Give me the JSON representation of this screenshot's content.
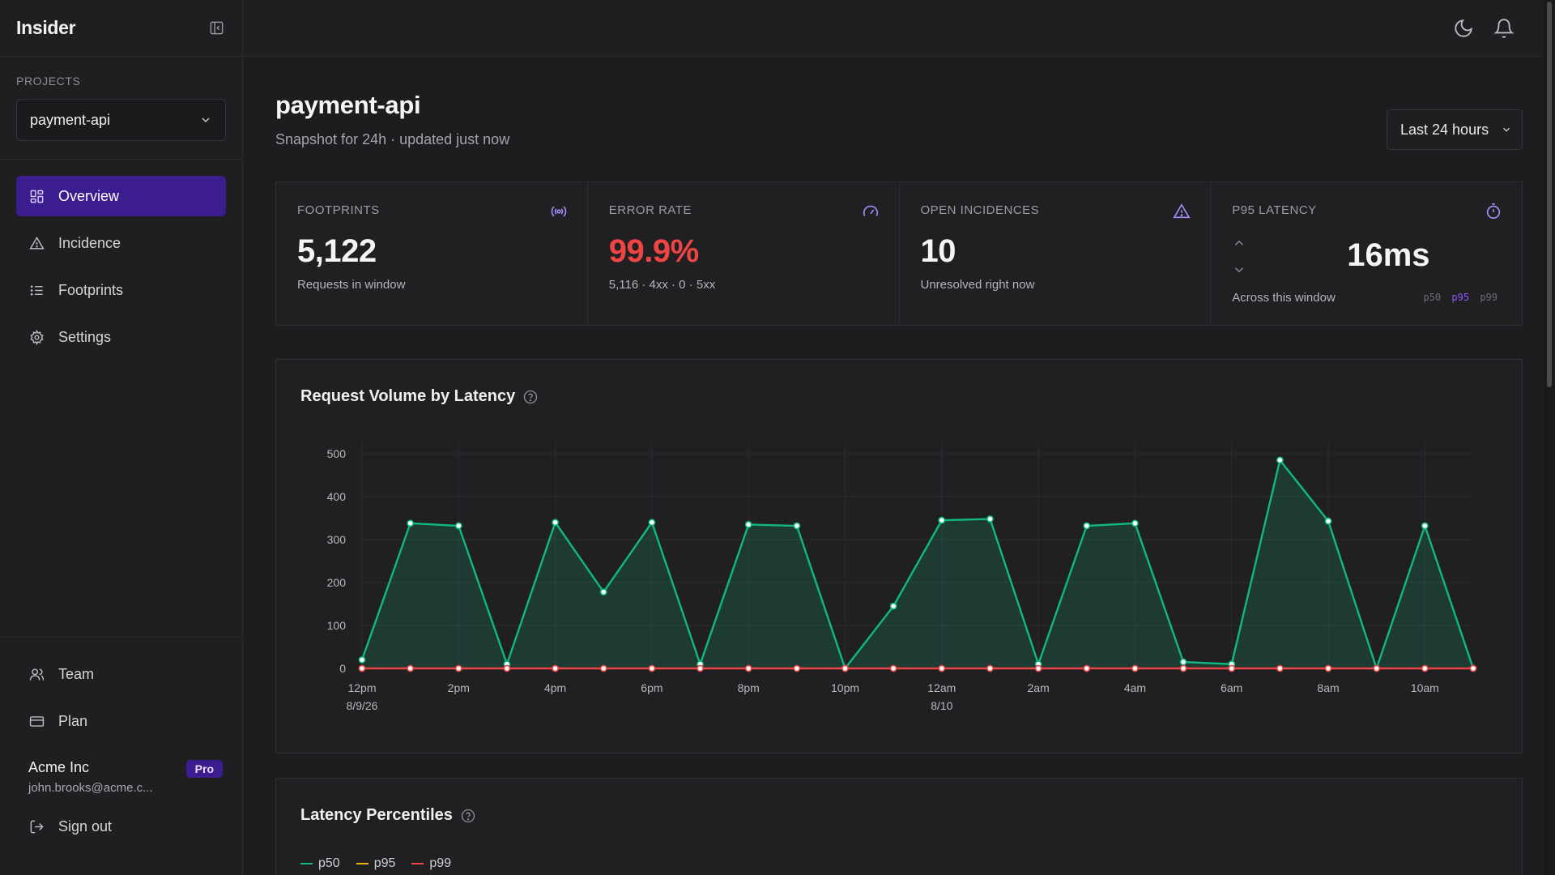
{
  "app": {
    "brand": "Insider"
  },
  "sidebar": {
    "projects_label": "PROJECTS",
    "project_selected": "payment-api",
    "nav": [
      {
        "label": "Overview",
        "icon": "grid-icon",
        "active": true
      },
      {
        "label": "Incidence",
        "icon": "warning-triangle-icon",
        "active": false
      },
      {
        "label": "Footprints",
        "icon": "list-icon",
        "active": false
      },
      {
        "label": "Settings",
        "icon": "gear-icon",
        "active": false
      }
    ],
    "bottom_nav": [
      {
        "label": "Team",
        "icon": "users-icon"
      },
      {
        "label": "Plan",
        "icon": "credit-card-icon"
      }
    ],
    "account": {
      "org": "Acme Inc",
      "email": "john.brooks@acme.c...",
      "badge": "Pro"
    },
    "sign_out": "Sign out"
  },
  "topbar": {
    "icons": [
      "moon-icon",
      "bell-icon"
    ]
  },
  "header": {
    "title": "payment-api",
    "subtitle": "Snapshot for 24h · updated just now",
    "range": "Last 24 hours"
  },
  "kpis": {
    "footprints": {
      "label": "FOOTPRINTS",
      "value": "5,122",
      "note": "Requests in window",
      "icon": "broadcast-icon"
    },
    "error_rate": {
      "label": "ERROR RATE",
      "value": "99.9%",
      "note": "5,116 · 4xx · 0 · 5xx",
      "icon": "gauge-icon",
      "color": "#ef4444"
    },
    "open_incidences": {
      "label": "OPEN INCIDENCES",
      "value": "10",
      "note": "Unresolved right now",
      "icon": "warning-triangle-icon"
    },
    "p95_latency": {
      "label": "P95 LATENCY",
      "value": "16ms",
      "note": "Across this window",
      "icon": "stopwatch-icon",
      "percentiles": [
        "p50",
        "p95",
        "p99"
      ],
      "selected": "p95"
    }
  },
  "volume_card": {
    "title": "Request Volume by Latency"
  },
  "percentiles_card": {
    "title": "Latency Percentiles",
    "legend": [
      {
        "name": "p50",
        "color": "#10b981"
      },
      {
        "name": "p95",
        "color": "#eab308"
      },
      {
        "name": "p99",
        "color": "#ef4444"
      }
    ]
  },
  "chart_data": {
    "type": "area",
    "title": "Request Volume by Latency",
    "x_tick_labels": [
      {
        "i": 0,
        "label": "12pm",
        "sub": "8/9/26"
      },
      {
        "i": 2,
        "label": "2pm"
      },
      {
        "i": 4,
        "label": "4pm"
      },
      {
        "i": 6,
        "label": "6pm"
      },
      {
        "i": 8,
        "label": "8pm"
      },
      {
        "i": 10,
        "label": "10pm"
      },
      {
        "i": 12,
        "label": "12am",
        "sub": "8/10"
      },
      {
        "i": 14,
        "label": "2am"
      },
      {
        "i": 16,
        "label": "4am"
      },
      {
        "i": 18,
        "label": "6am"
      },
      {
        "i": 20,
        "label": "8am"
      },
      {
        "i": 22,
        "label": "10am"
      }
    ],
    "ylim": [
      0,
      500
    ],
    "y_ticks": [
      0,
      100,
      200,
      300,
      400,
      500
    ],
    "series": [
      {
        "color": "#10b981",
        "values": [
          20,
          338,
          332,
          10,
          340,
          178,
          340,
          10,
          335,
          332,
          0,
          145,
          345,
          348,
          10,
          332,
          338,
          15,
          10,
          485,
          343,
          0,
          332,
          0
        ]
      },
      {
        "color": "#ef4444",
        "values": [
          0,
          0,
          0,
          0,
          0,
          0,
          0,
          0,
          0,
          0,
          0,
          0,
          0,
          0,
          0,
          0,
          0,
          0,
          0,
          0,
          0,
          0,
          0,
          0
        ]
      }
    ],
    "grid": true
  }
}
